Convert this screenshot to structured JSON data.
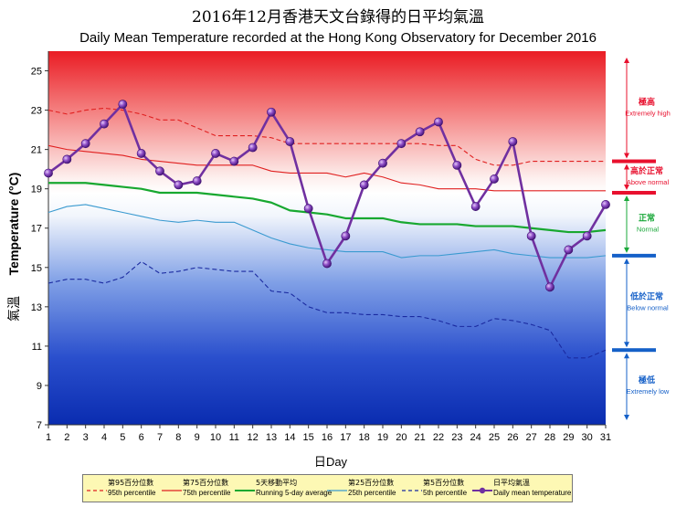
{
  "title_zh": "2016年12月香港天文台錄得的日平均氣溫",
  "title_en": "Daily Mean Temperature recorded at the Hong Kong Observatory for December 2016",
  "axes": {
    "ylabel_zh": "氣溫",
    "ylabel_en": "Temperature (°C)",
    "xlabel_zh": "日",
    "xlabel_en": "Day"
  },
  "zones": [
    {
      "name_zh": "極高",
      "name_en": "Extremely high",
      "color": "#e8102e"
    },
    {
      "name_zh": "高於正常",
      "name_en": "Above normal",
      "color": "#e8102e"
    },
    {
      "name_zh": "正常",
      "name_en": "Normal",
      "color": "#1aa83a"
    },
    {
      "name_zh": "低於正常",
      "name_en": "Below normal",
      "color": "#1560c8"
    },
    {
      "name_zh": "極低",
      "name_en": "Extremely low",
      "color": "#1560c8"
    }
  ],
  "legend": [
    {
      "zh": "第95百分位數",
      "en": "95th percentile"
    },
    {
      "zh": "第75百分位數",
      "en": "75th percentile"
    },
    {
      "zh": "5天移動平均",
      "en": "Running 5-day average"
    },
    {
      "zh": "第25百分位數",
      "en": "25th percentile"
    },
    {
      "zh": "第5百分位數",
      "en": "5th percentile"
    },
    {
      "zh": "日平均氣溫",
      "en": "Daily mean temperature"
    }
  ],
  "colors": {
    "p95": "#e02020",
    "p75": "#e02020",
    "avg5": "#18a830",
    "p25": "#3a9ad0",
    "p5": "#1a2aa0",
    "daily": "#7030a0"
  },
  "chart_data": {
    "type": "line",
    "x": [
      1,
      2,
      3,
      4,
      5,
      6,
      7,
      8,
      9,
      10,
      11,
      12,
      13,
      14,
      15,
      16,
      17,
      18,
      19,
      20,
      21,
      22,
      23,
      24,
      25,
      26,
      27,
      28,
      29,
      30,
      31
    ],
    "xlim": [
      1,
      31
    ],
    "ylim": [
      7,
      26
    ],
    "yticks": [
      7,
      9,
      11,
      13,
      15,
      17,
      19,
      21,
      23,
      25
    ],
    "grid": false,
    "legend_position": "bottom",
    "zone_thresholds": [
      10.8,
      15.6,
      18.8,
      20.4
    ],
    "series": [
      {
        "key": "p95",
        "style": "dashed",
        "values": [
          23.0,
          22.8,
          23.0,
          23.1,
          23.0,
          22.8,
          22.5,
          22.5,
          22.1,
          21.7,
          21.7,
          21.7,
          21.6,
          21.3,
          21.3,
          21.3,
          21.3,
          21.3,
          21.3,
          21.3,
          21.3,
          21.2,
          21.2,
          20.5,
          20.2,
          20.2,
          20.4,
          20.4,
          20.4,
          20.4,
          20.4
        ]
      },
      {
        "key": "p75",
        "style": "solid",
        "values": [
          21.2,
          21.0,
          20.9,
          20.8,
          20.7,
          20.5,
          20.4,
          20.3,
          20.2,
          20.2,
          20.2,
          20.2,
          19.9,
          19.8,
          19.8,
          19.8,
          19.6,
          19.8,
          19.6,
          19.3,
          19.2,
          19.0,
          19.0,
          19.0,
          18.9,
          18.9,
          18.9,
          18.9,
          18.9,
          18.9,
          18.9
        ]
      },
      {
        "key": "avg5",
        "style": "solid",
        "values": [
          19.3,
          19.3,
          19.3,
          19.2,
          19.1,
          19.0,
          18.8,
          18.8,
          18.8,
          18.7,
          18.6,
          18.5,
          18.3,
          17.9,
          17.8,
          17.7,
          17.5,
          17.5,
          17.5,
          17.3,
          17.2,
          17.2,
          17.2,
          17.1,
          17.1,
          17.1,
          17.0,
          16.9,
          16.8,
          16.8,
          16.9
        ]
      },
      {
        "key": "p25",
        "style": "solid",
        "values": [
          17.8,
          18.1,
          18.2,
          18.0,
          17.8,
          17.6,
          17.4,
          17.3,
          17.4,
          17.3,
          17.3,
          16.9,
          16.5,
          16.2,
          16.0,
          15.9,
          15.8,
          15.8,
          15.8,
          15.5,
          15.6,
          15.6,
          15.7,
          15.8,
          15.9,
          15.7,
          15.6,
          15.5,
          15.5,
          15.5,
          15.6
        ]
      },
      {
        "key": "p5",
        "style": "dashed",
        "values": [
          14.2,
          14.4,
          14.4,
          14.2,
          14.5,
          15.3,
          14.7,
          14.8,
          15.0,
          14.9,
          14.8,
          14.8,
          13.8,
          13.7,
          13.0,
          12.7,
          12.7,
          12.6,
          12.6,
          12.5,
          12.5,
          12.3,
          12.0,
          12.0,
          12.4,
          12.3,
          12.1,
          11.8,
          10.4,
          10.4,
          10.8
        ]
      },
      {
        "key": "daily",
        "style": "markers",
        "values": [
          19.8,
          20.5,
          21.3,
          22.3,
          23.3,
          20.8,
          19.9,
          19.2,
          19.4,
          20.8,
          20.4,
          21.1,
          22.9,
          21.4,
          18.0,
          15.2,
          16.6,
          19.2,
          20.3,
          21.3,
          21.9,
          22.4,
          20.2,
          18.1,
          19.5,
          21.4,
          16.6,
          14.0,
          15.9,
          16.6,
          18.2
        ]
      }
    ]
  }
}
